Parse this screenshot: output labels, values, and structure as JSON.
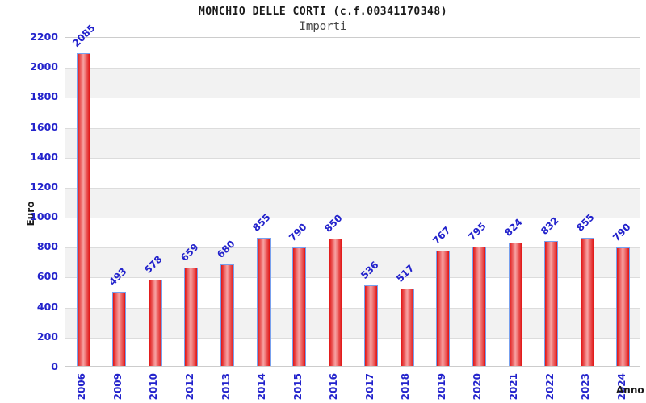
{
  "header": {
    "title": "MONCHIO DELLE CORTI (c.f.00341170348)",
    "subtitle": "Importi"
  },
  "chart_data": {
    "type": "bar",
    "title": "MONCHIO DELLE CORTI (c.f.00341170348)",
    "subtitle": "Importi",
    "xlabel": "Anno",
    "ylabel": "Euro",
    "categories": [
      "2006",
      "2009",
      "2010",
      "2012",
      "2013",
      "2014",
      "2015",
      "2016",
      "2017",
      "2018",
      "2019",
      "2020",
      "2021",
      "2022",
      "2023",
      "2024"
    ],
    "values": [
      2085,
      493,
      578,
      659,
      680,
      855,
      790,
      850,
      536,
      517,
      767,
      795,
      824,
      832,
      855,
      790
    ],
    "ylim": [
      0,
      2200
    ],
    "ytick_step": 200,
    "yticks": [
      0,
      200,
      400,
      600,
      800,
      1000,
      1200,
      1400,
      1600,
      1800,
      2000,
      2200
    ],
    "grid": true,
    "alternating_bands": true,
    "legend": "none",
    "value_labels": "above-bars-rotated-45",
    "x_labels_rotation": "vertical"
  },
  "colors": {
    "title_color": "#1a1a1a",
    "subtitle_color": "#444444",
    "axis_title_color": "#1a1a1a",
    "tick_label": "#2323cc",
    "value_label": "#2323cc",
    "bar_fill_edge": "#e01414",
    "bar_fill_center": "#f7a3a3",
    "bar_border": "#77a0ee",
    "band_gray": "#f2f2f2",
    "grid_line": "#dcdcdc",
    "plot_border": "#cccccc"
  }
}
